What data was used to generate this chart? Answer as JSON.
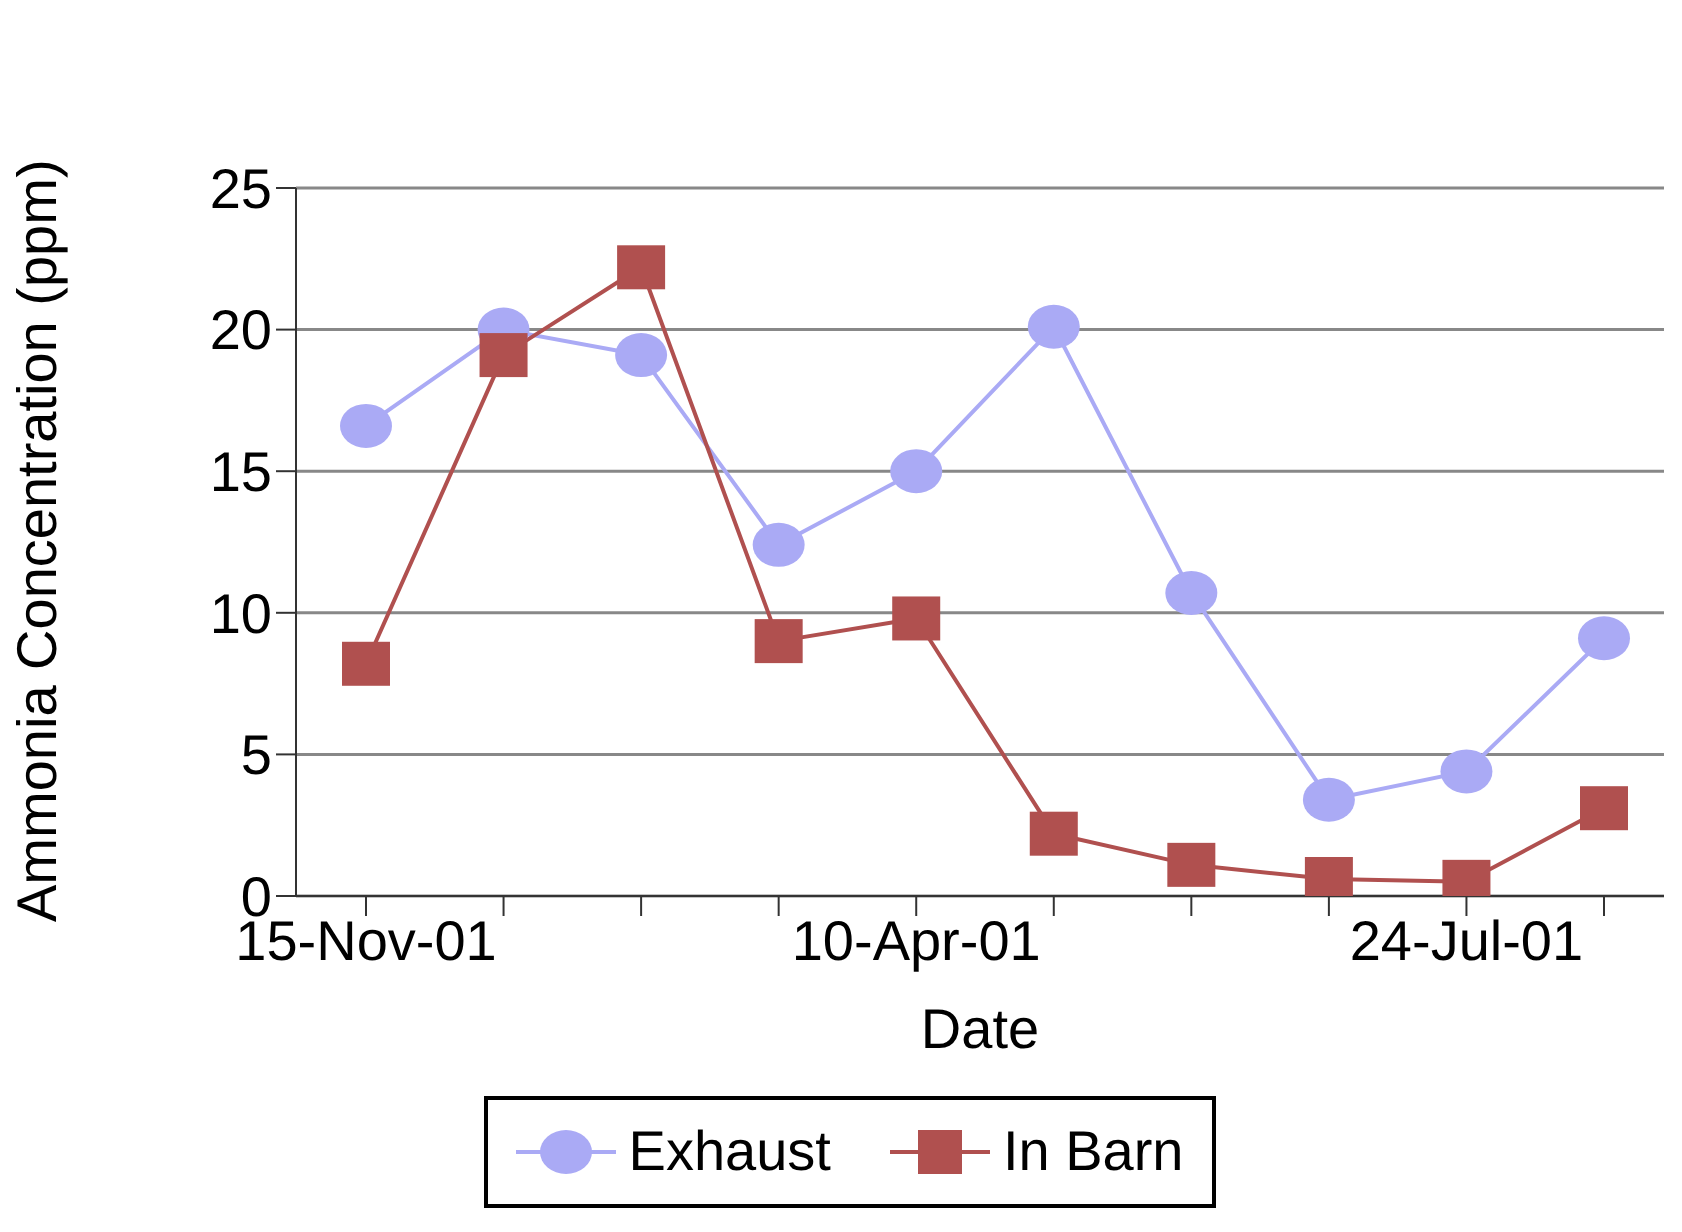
{
  "chart_data": {
    "type": "line",
    "xlabel": "Date",
    "ylabel": "Ammonia Concentration (ppm)",
    "categories": [
      "15-Nov-01",
      null,
      null,
      null,
      "10-Apr-01",
      null,
      null,
      null,
      "24-Jul-01",
      null
    ],
    "series": [
      {
        "name": "Exhaust",
        "color": "#aaaaf5",
        "marker": "circle",
        "values": [
          16.6,
          20.0,
          19.1,
          12.4,
          15.0,
          20.1,
          10.7,
          3.4,
          4.4,
          9.1
        ]
      },
      {
        "name": "In Barn",
        "color": "#b0504f",
        "marker": "square",
        "values": [
          8.2,
          19.1,
          22.2,
          9.0,
          9.8,
          2.2,
          1.1,
          0.6,
          0.5,
          3.1
        ]
      }
    ],
    "ylim": [
      0,
      25
    ],
    "yticks": [
      0,
      5,
      10,
      15,
      20,
      25
    ],
    "grid": "y",
    "legend": "bottom"
  }
}
